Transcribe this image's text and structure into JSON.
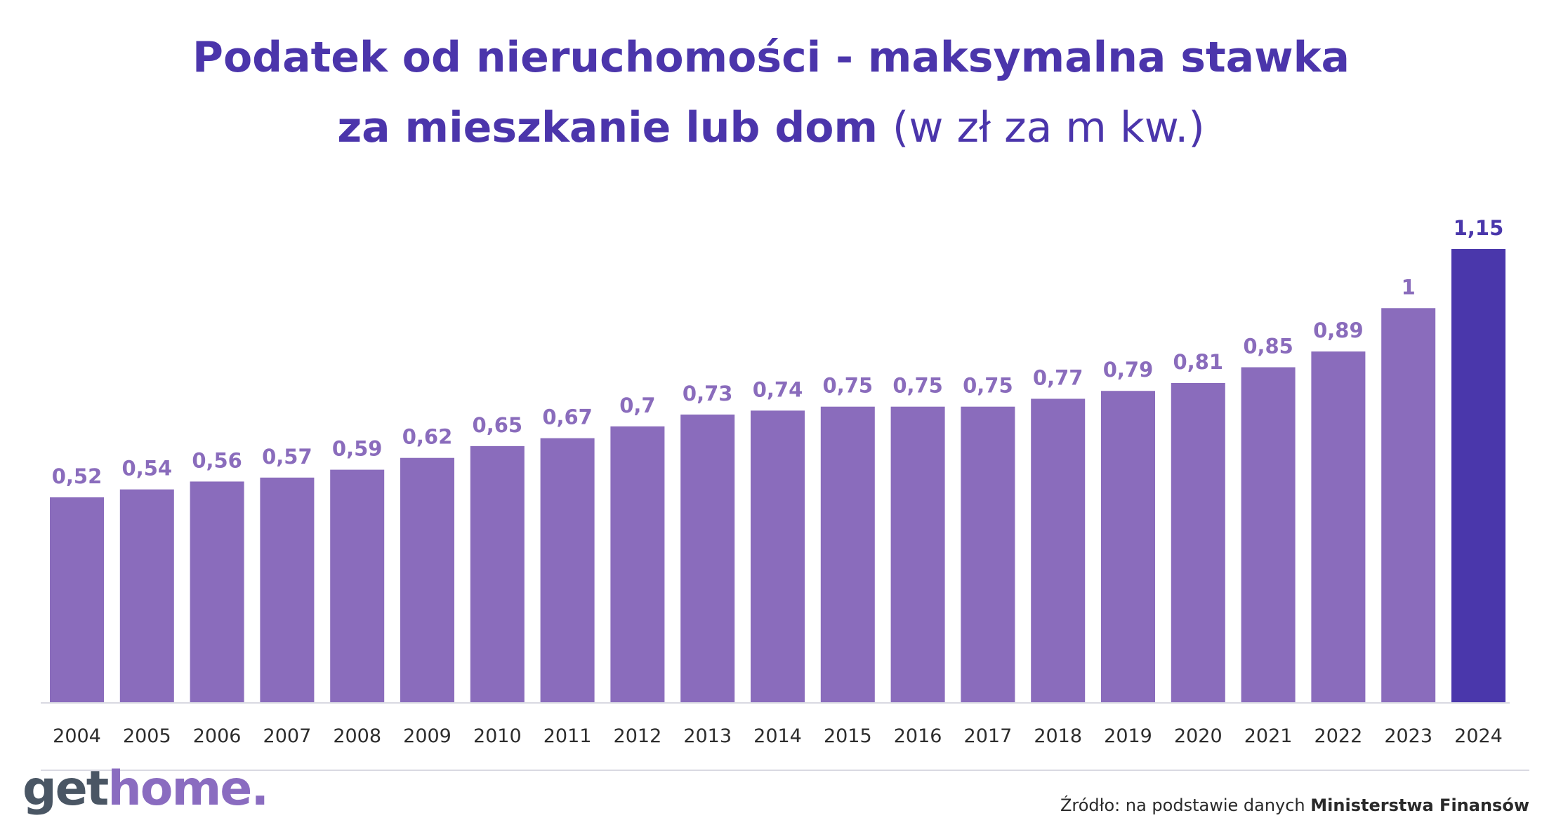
{
  "title": {
    "line1": "Podatek od nieruchomości - maksymalna stawka",
    "line2_main": "za mieszkanie lub dom",
    "line2_unit": "(w zł za m kw.)"
  },
  "chart_data": {
    "type": "bar",
    "title": "Podatek od nieruchomości - maksymalna stawka za mieszkanie lub dom (w zł za m kw.)",
    "categories": [
      "2004",
      "2005",
      "2006",
      "2007",
      "2008",
      "2009",
      "2010",
      "2011",
      "2012",
      "2013",
      "2014",
      "2015",
      "2016",
      "2017",
      "2018",
      "2019",
      "2020",
      "2021",
      "2022",
      "2023",
      "2024"
    ],
    "values": [
      0.52,
      0.54,
      0.56,
      0.57,
      0.59,
      0.62,
      0.65,
      0.67,
      0.7,
      0.73,
      0.74,
      0.75,
      0.75,
      0.75,
      0.77,
      0.79,
      0.81,
      0.85,
      0.89,
      1,
      1.15
    ],
    "labels": [
      "0,52",
      "0,54",
      "0,56",
      "0,57",
      "0,59",
      "0,62",
      "0,65",
      "0,67",
      "0,7",
      "0,73",
      "0,74",
      "0,75",
      "0,75",
      "0,75",
      "0,77",
      "0,79",
      "0,81",
      "0,85",
      "0,89",
      "1",
      "1,15"
    ],
    "highlight_index": 20,
    "colors": {
      "bar": "#8a6cbc",
      "highlight": "#4a37ab",
      "label": "#8a6cbc",
      "highlight_label": "#4a37ab",
      "axis": "#d9d9e2",
      "tick": "#2d2d2d"
    },
    "grid": false,
    "xlabel": "",
    "ylabel": ""
  },
  "logo": {
    "part1": "get",
    "part2": "home."
  },
  "source": {
    "prefix": "Źródło: na podstawie danych ",
    "strong": "Ministerstwa Finansów"
  },
  "brand_colors": {
    "title": "#4b35ab",
    "logo_dark": "#4a5664",
    "logo_accent": "#8a6cc0"
  }
}
